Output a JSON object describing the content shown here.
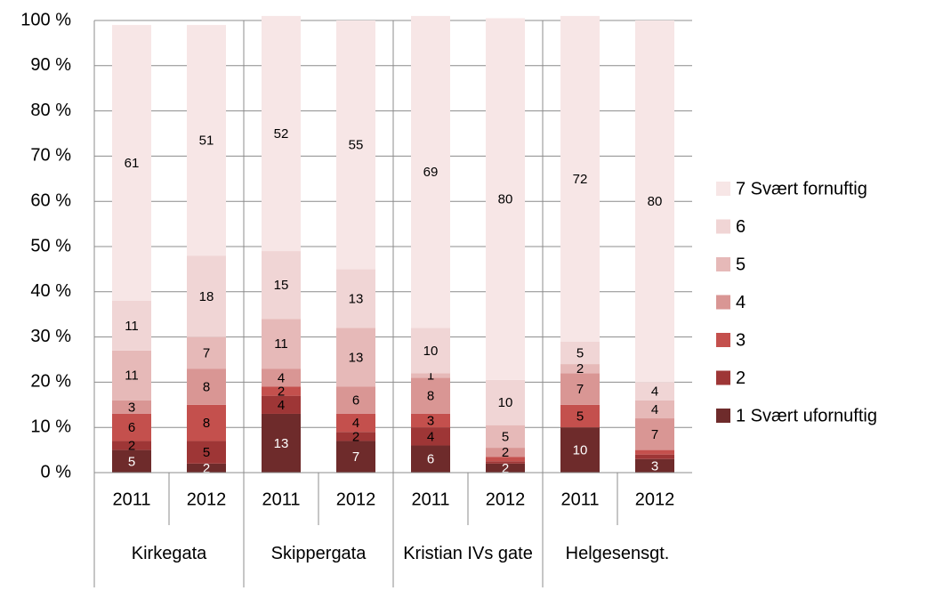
{
  "chart_data": {
    "type": "stacked_bar",
    "categories": [
      "2011",
      "2012",
      "2011",
      "2012",
      "2011",
      "2012",
      "2011",
      "2012"
    ],
    "groups": [
      "Kirkegata",
      "Skippergata",
      "Kristian IVs gate",
      "Helgesensgt."
    ],
    "ylim": [
      0,
      100
    ],
    "yticks": [
      {
        "value": 0,
        "label": "0 %"
      },
      {
        "value": 10,
        "label": "10 %"
      },
      {
        "value": 20,
        "label": "20 %"
      },
      {
        "value": 30,
        "label": "30 %"
      },
      {
        "value": 40,
        "label": "40 %"
      },
      {
        "value": 50,
        "label": "50 %"
      },
      {
        "value": 60,
        "label": "60 %"
      },
      {
        "value": 70,
        "label": "70 %"
      },
      {
        "value": 80,
        "label": "80 %"
      },
      {
        "value": 90,
        "label": "90 %"
      },
      {
        "value": 100,
        "label": "100 %"
      }
    ],
    "grid": true,
    "legend": "right",
    "series": [
      {
        "name": "1 Svært ufornuftig",
        "color": "#6e2b2b",
        "values": [
          5,
          2,
          13,
          7,
          6,
          2,
          10,
          3
        ],
        "value_labels": [
          "5",
          "2",
          "13",
          "7",
          "6",
          "2",
          "10",
          "3"
        ]
      },
      {
        "name": "2",
        "color": "#9e3636",
        "values": [
          2,
          5,
          4,
          2,
          4,
          0.5,
          0,
          1
        ],
        "value_labels": [
          "2",
          "5",
          "4",
          "2",
          "4",
          null,
          null,
          null
        ]
      },
      {
        "name": "3",
        "color": "#c4504d",
        "values": [
          6,
          8,
          2,
          4,
          3,
          1,
          5,
          1
        ],
        "value_labels": [
          "6",
          "8",
          "2",
          "4",
          "3",
          null,
          "5",
          null
        ]
      },
      {
        "name": "4",
        "color": "#d99694",
        "values": [
          3,
          8,
          4,
          6,
          8,
          2,
          7,
          7
        ],
        "value_labels": [
          "3",
          "8",
          "4",
          "6",
          "8",
          "2",
          "7",
          "7"
        ]
      },
      {
        "name": "5",
        "color": "#e6b9b8",
        "values": [
          11,
          7,
          11,
          13,
          1,
          5,
          2,
          4
        ],
        "value_labels": [
          "11",
          "7",
          "11",
          "13",
          "1",
          "5",
          "2",
          "4"
        ]
      },
      {
        "name": "6",
        "color": "#f0d5d5",
        "values": [
          11,
          18,
          15,
          13,
          10,
          10,
          5,
          4
        ],
        "value_labels": [
          "11",
          "18",
          "15",
          "13",
          "10",
          "10",
          "5",
          "4"
        ]
      },
      {
        "name": "7 Svært fornuftig",
        "color": "#f7e6e6",
        "values": [
          61,
          51,
          52,
          55,
          69,
          80,
          72,
          80
        ],
        "value_labels": [
          "61",
          "51",
          "52",
          "55",
          "69",
          "80",
          "72",
          "80"
        ]
      }
    ]
  }
}
